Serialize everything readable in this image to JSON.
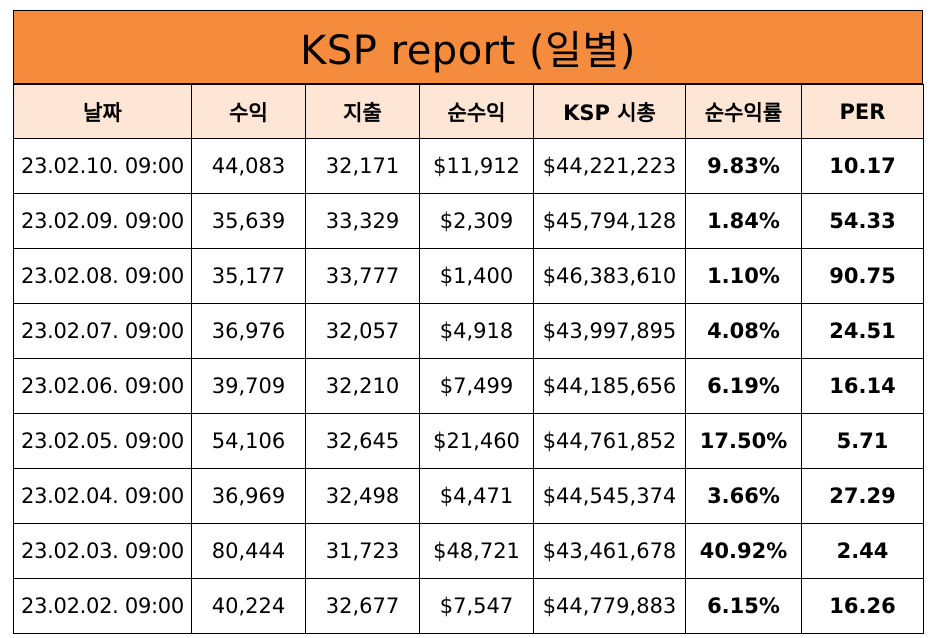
{
  "report": {
    "title": "KSP report (일별)",
    "columns": [
      "날짜",
      "수익",
      "지출",
      "순수익",
      "KSP 시총",
      "순수익률",
      "PER"
    ],
    "rows": [
      [
        "23.02.10. 09:00",
        "44,083",
        "32,171",
        "$11,912",
        "$44,221,223",
        "9.83%",
        "10.17"
      ],
      [
        "23.02.09. 09:00",
        "35,639",
        "33,329",
        "$2,309",
        "$45,794,128",
        "1.84%",
        "54.33"
      ],
      [
        "23.02.08. 09:00",
        "35,177",
        "33,777",
        "$1,400",
        "$46,383,610",
        "1.10%",
        "90.75"
      ],
      [
        "23.02.07. 09:00",
        "36,976",
        "32,057",
        "$4,918",
        "$43,997,895",
        "4.08%",
        "24.51"
      ],
      [
        "23.02.06. 09:00",
        "39,709",
        "32,210",
        "$7,499",
        "$44,185,656",
        "6.19%",
        "16.14"
      ],
      [
        "23.02.05. 09:00",
        "54,106",
        "32,645",
        "$21,460",
        "$44,761,852",
        "17.50%",
        "5.71"
      ],
      [
        "23.02.04. 09:00",
        "36,969",
        "32,498",
        "$4,471",
        "$44,545,374",
        "3.66%",
        "27.29"
      ],
      [
        "23.02.03. 09:00",
        "80,444",
        "31,723",
        "$48,721",
        "$43,461,678",
        "40.92%",
        "2.44"
      ],
      [
        "23.02.02. 09:00",
        "40,224",
        "32,677",
        "$7,547",
        "$44,779,883",
        "6.15%",
        "16.26"
      ]
    ]
  }
}
